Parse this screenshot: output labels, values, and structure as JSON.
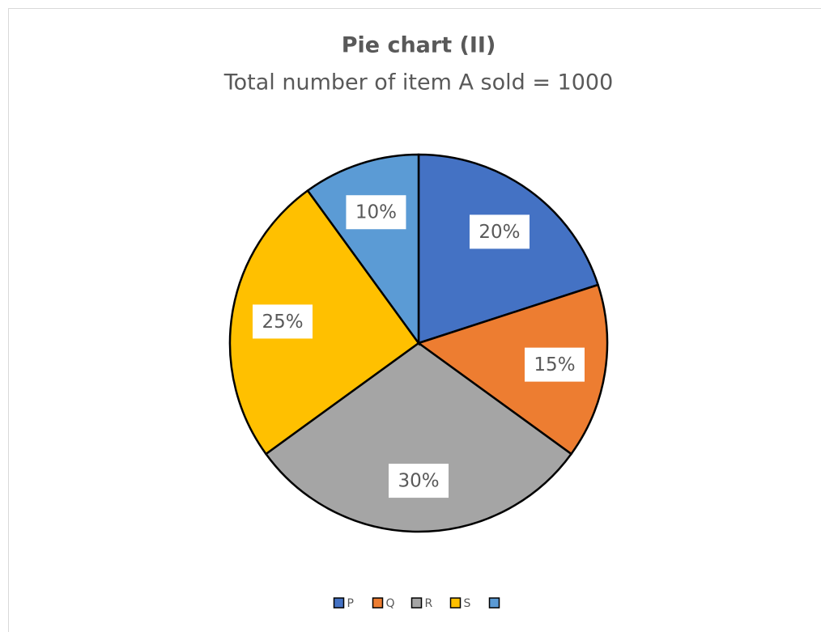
{
  "chart_data": {
    "type": "pie",
    "title": "Pie chart (II)",
    "subtitle": "Total number of item A sold = 1000",
    "categories": [
      "P",
      "Q",
      "R",
      "S",
      null
    ],
    "values": [
      20,
      15,
      30,
      25,
      10
    ],
    "value_labels": [
      "20%",
      "15%",
      "30%",
      "25%",
      "10%"
    ],
    "colors": [
      "#4472c4",
      "#ed7d31",
      "#a5a5a5",
      "#ffc000",
      "#5b9bd5"
    ],
    "legend": "bottom"
  }
}
